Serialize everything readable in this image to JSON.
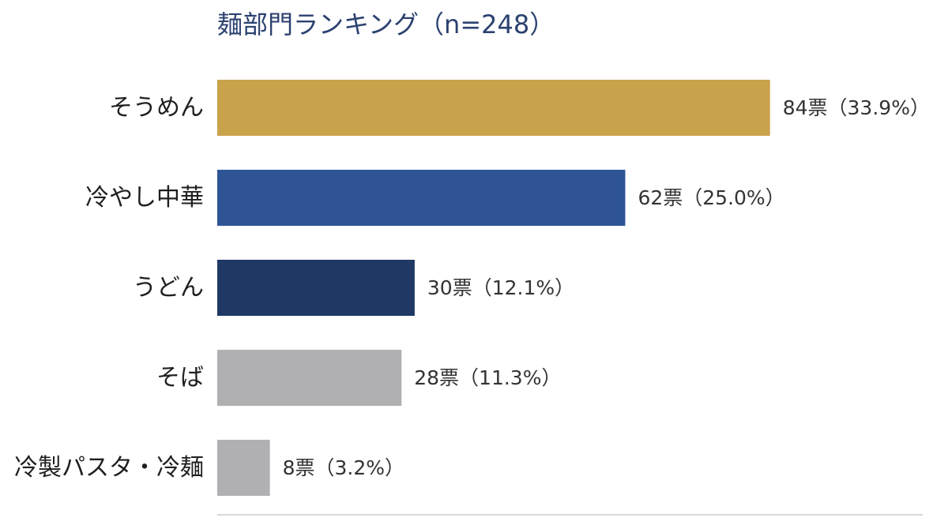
{
  "chart_data": {
    "type": "bar",
    "orientation": "horizontal",
    "title": "麺部門ランキング（n=248）",
    "xlabel": "",
    "ylabel": "",
    "xlim": [
      0,
      100
    ],
    "grid": false,
    "legend": "none",
    "categories": [
      "そうめん",
      "冷やし中華",
      "うどん",
      "そば",
      "冷製パスタ・冷麺"
    ],
    "values": [
      84,
      62,
      30,
      28,
      8
    ],
    "percents": [
      33.9,
      25.0,
      12.1,
      11.3,
      3.2
    ],
    "data_labels": [
      "84票（33.9%）",
      "62票（25.0%）",
      "30票（12.1%）",
      "28票（11.3%）",
      "8票（3.2%）"
    ],
    "colors": [
      "#c9a24c",
      "#2e5496",
      "#1f3864",
      "#b0afb1",
      "#b0afb1"
    ]
  },
  "colors": {
    "baseline": "#d9d9d9"
  }
}
